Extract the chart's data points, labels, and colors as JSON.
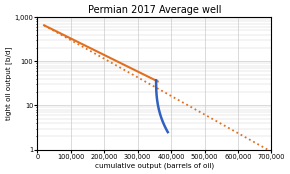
{
  "title": "Permian 2017 Average well",
  "xlabel": "cumulative output (barrels of oil)",
  "ylabel": "tight oil output [b/d]",
  "ylim_log": [
    1,
    1000
  ],
  "xlim": [
    0,
    700000
  ],
  "background_color": "#ffffff",
  "grid_color": "#cccccc",
  "orange_color": "#E07020",
  "blue_color": "#3060C0",
  "orange_dot_x_start": 20000,
  "orange_dot_x_end": 700000,
  "orange_dot_y_start": 650,
  "orange_dot_y_end": 0.9,
  "orange_solid_x_start": 20000,
  "orange_solid_x_end": 360000,
  "orange_solid_y_start": 650,
  "orange_solid_y_end": 35,
  "blue_x_start": 355000,
  "blue_x_end": 390000,
  "blue_y_start": 37,
  "blue_y_end": 2.5,
  "blue_curve_power": 0.4
}
